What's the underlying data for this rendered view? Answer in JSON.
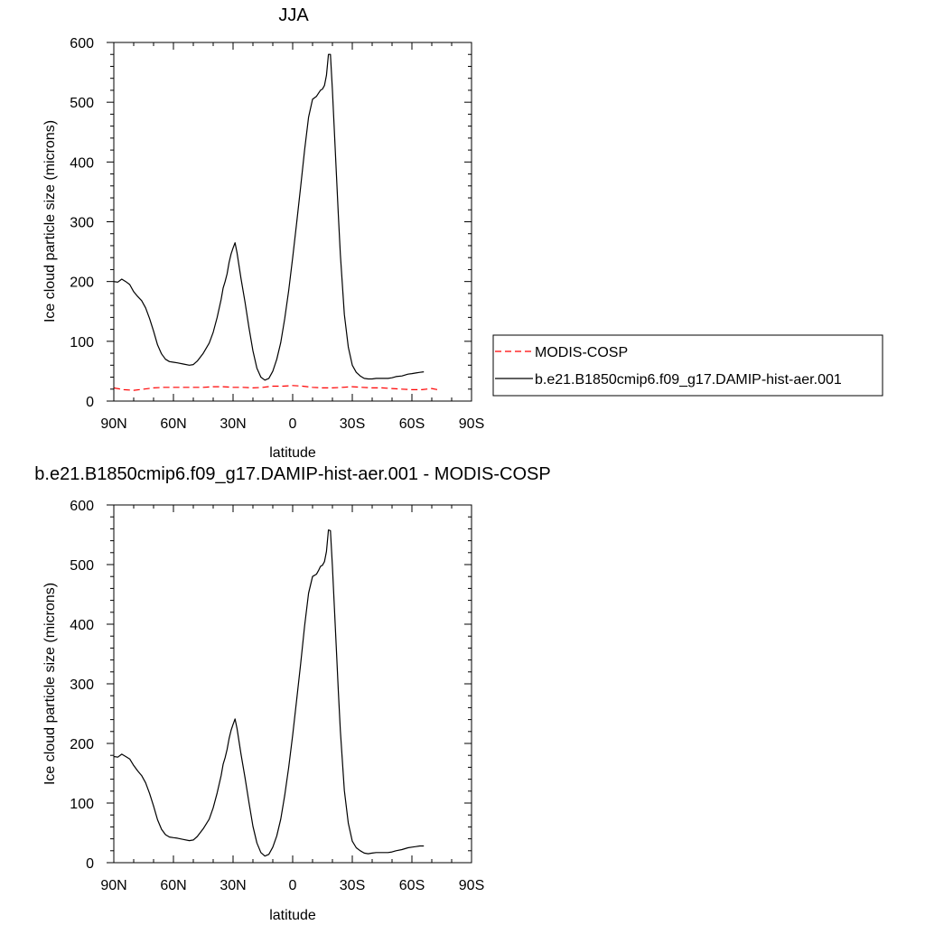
{
  "chart_data": [
    {
      "type": "line",
      "title": "JJA",
      "xlabel": "latitude",
      "ylabel": "Ice cloud particle size (microns)",
      "xlim": [
        90,
        -90
      ],
      "ylim": [
        0,
        600
      ],
      "x_ticks": [
        90,
        60,
        30,
        0,
        -30,
        -60,
        -90
      ],
      "x_tick_labels": [
        "90N",
        "60N",
        "30N",
        "0",
        "30S",
        "60S",
        "90S"
      ],
      "y_ticks": [
        0,
        100,
        200,
        300,
        400,
        500,
        600
      ],
      "y_tick_labels": [
        "0",
        "100",
        "200",
        "300",
        "400",
        "500",
        "600"
      ],
      "grid": false,
      "legend_position": "right-outside",
      "series": [
        {
          "name": "MODIS-COSP",
          "color": "#ff0000",
          "dash": "dashed",
          "x": [
            90,
            85,
            80,
            75,
            70,
            65,
            60,
            55,
            50,
            45,
            40,
            35,
            30,
            25,
            20,
            15,
            10,
            5,
            0,
            -5,
            -10,
            -15,
            -20,
            -25,
            -30,
            -35,
            -40,
            -45,
            -50,
            -55,
            -60,
            -65,
            -70,
            -73
          ],
          "y": [
            22,
            19,
            18,
            20,
            22,
            23,
            23,
            23,
            23,
            23,
            24,
            24,
            23,
            23,
            22,
            23,
            25,
            25,
            26,
            25,
            23,
            22,
            22,
            23,
            24,
            23,
            22,
            22,
            21,
            20,
            19,
            19,
            21,
            19
          ]
        },
        {
          "name": "b.e21.B1850cmip6.f09_g17.DAMIP-hist-aer.001",
          "color": "#000000",
          "dash": "solid",
          "x": [
            90,
            88,
            86,
            84,
            82,
            80,
            78,
            76,
            74,
            72,
            70,
            68,
            66,
            64,
            62,
            60,
            58,
            55,
            52,
            50,
            48,
            45,
            42,
            40,
            38,
            36,
            35,
            34,
            33,
            32,
            31,
            30,
            29,
            28,
            26,
            24,
            22,
            20,
            18,
            16,
            14,
            12,
            10,
            8,
            6,
            4,
            2,
            0,
            -2,
            -4,
            -6,
            -8,
            -10,
            -12,
            -13,
            -14,
            -15,
            -16,
            -17,
            -18,
            -19,
            -20,
            -21,
            -22,
            -23,
            -24,
            -26,
            -28,
            -30,
            -32,
            -34,
            -36,
            -38,
            -40,
            -42,
            -45,
            -48,
            -50,
            -52,
            -55,
            -58,
            -60,
            -62,
            -64,
            -66
          ],
          "y": [
            200,
            199,
            204,
            200,
            195,
            183,
            175,
            168,
            156,
            138,
            117,
            94,
            79,
            70,
            66,
            65,
            64,
            62,
            60,
            61,
            67,
            80,
            97,
            115,
            140,
            170,
            189,
            200,
            213,
            232,
            246,
            256,
            265,
            248,
            205,
            166,
            123,
            84,
            55,
            40,
            35,
            38,
            50,
            70,
            98,
            138,
            185,
            240,
            298,
            358,
            420,
            475,
            505,
            510,
            515,
            520,
            522,
            528,
            545,
            580,
            580,
            520,
            450,
            380,
            310,
            245,
            145,
            90,
            60,
            48,
            42,
            38,
            37,
            37,
            38,
            38,
            38,
            39,
            41,
            42,
            45,
            46,
            47,
            48,
            49
          ]
        }
      ]
    },
    {
      "type": "line",
      "title": "b.e21.B1850cmip6.f09_g17.DAMIP-hist-aer.001 - MODIS-COSP",
      "xlabel": "latitude",
      "ylabel": "Ice cloud particle size (microns)",
      "xlim": [
        90,
        -90
      ],
      "ylim": [
        0,
        600
      ],
      "x_ticks": [
        90,
        60,
        30,
        0,
        -30,
        -60,
        -90
      ],
      "x_tick_labels": [
        "90N",
        "60N",
        "30N",
        "0",
        "30S",
        "60S",
        "90S"
      ],
      "y_ticks": [
        0,
        100,
        200,
        300,
        400,
        500,
        600
      ],
      "y_tick_labels": [
        "0",
        "100",
        "200",
        "300",
        "400",
        "500",
        "600"
      ],
      "grid": false,
      "series": [
        {
          "color": "#000000",
          "dash": "solid",
          "x": [
            90,
            88,
            86,
            84,
            82,
            80,
            78,
            76,
            74,
            72,
            70,
            68,
            66,
            64,
            62,
            60,
            58,
            55,
            52,
            50,
            48,
            45,
            42,
            40,
            38,
            36,
            35,
            34,
            33,
            32,
            31,
            30,
            29,
            28,
            26,
            24,
            22,
            20,
            18,
            16,
            14,
            12,
            10,
            8,
            6,
            4,
            2,
            0,
            -2,
            -4,
            -6,
            -8,
            -10,
            -12,
            -13,
            -14,
            -15,
            -16,
            -17,
            -18,
            -19,
            -20,
            -21,
            -22,
            -23,
            -24,
            -26,
            -28,
            -30,
            -32,
            -34,
            -36,
            -38,
            -40,
            -42,
            -45,
            -48,
            -50,
            -52,
            -55,
            -58,
            -60,
            -62,
            -64,
            -66
          ],
          "y": [
            178,
            177,
            182,
            178,
            174,
            163,
            154,
            146,
            134,
            116,
            95,
            72,
            56,
            47,
            43,
            42,
            41,
            39,
            37,
            38,
            44,
            57,
            73,
            92,
            117,
            146,
            165,
            176,
            190,
            208,
            222,
            232,
            241,
            225,
            182,
            143,
            101,
            61,
            33,
            17,
            11,
            14,
            26,
            45,
            73,
            113,
            160,
            214,
            273,
            333,
            397,
            452,
            480,
            484,
            490,
            497,
            499,
            505,
            522,
            558,
            557,
            497,
            427,
            357,
            286,
            221,
            121,
            66,
            36,
            25,
            20,
            16,
            15,
            16,
            17,
            17,
            17,
            18,
            20,
            22,
            25,
            26,
            27,
            28,
            28
          ]
        }
      ]
    }
  ]
}
